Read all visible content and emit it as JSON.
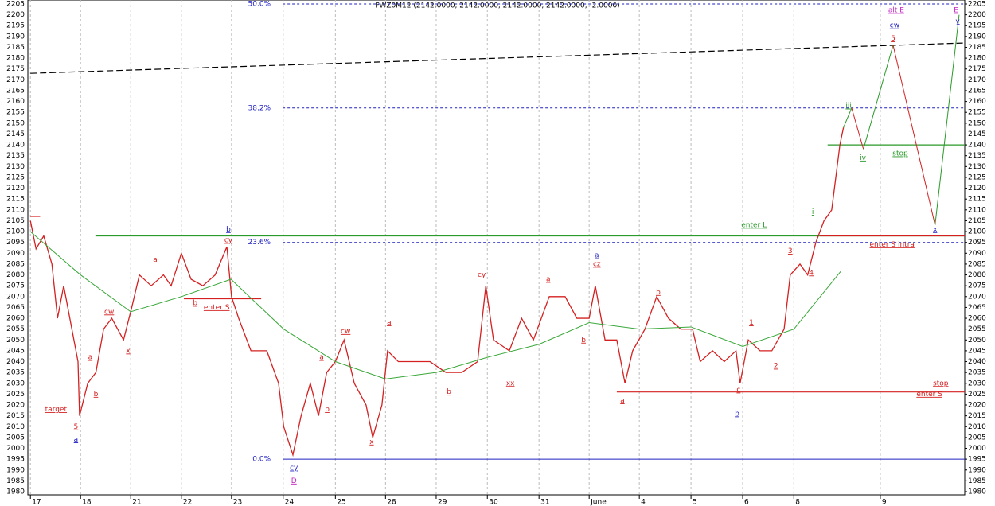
{
  "chart_data": {
    "type": "line",
    "title": "FWZ0M12 (2142.0000, 2142.0000, 2142.0000, 2142.0000, -2.0000)",
    "xlim": [
      -0.05,
      18.26
    ],
    "ylim": [
      1980,
      2205
    ],
    "xticks": [
      {
        "value": 0,
        "label": "17"
      },
      {
        "value": 0.98,
        "label": "18"
      },
      {
        "value": 1.96,
        "label": "21"
      },
      {
        "value": 2.95,
        "label": "22"
      },
      {
        "value": 3.93,
        "label": "23"
      },
      {
        "value": 4.94,
        "label": "24"
      },
      {
        "value": 5.96,
        "label": "25"
      },
      {
        "value": 6.94,
        "label": "28"
      },
      {
        "value": 7.93,
        "label": "29"
      },
      {
        "value": 8.93,
        "label": "30"
      },
      {
        "value": 9.94,
        "label": "31"
      },
      {
        "value": 10.92,
        "label": "June"
      },
      {
        "value": 11.9,
        "label": "4"
      },
      {
        "value": 12.91,
        "label": "5"
      },
      {
        "value": 13.92,
        "label": "6"
      },
      {
        "value": 14.92,
        "label": "8"
      },
      {
        "value": 16.61,
        "label": "9"
      }
    ],
    "yticks": [
      1980,
      1985,
      1990,
      1995,
      2000,
      2005,
      2010,
      2015,
      2020,
      2025,
      2030,
      2035,
      2040,
      2045,
      2050,
      2055,
      2060,
      2065,
      2070,
      2075,
      2080,
      2085,
      2090,
      2095,
      2100,
      2105,
      2110,
      2115,
      2120,
      2125,
      2130,
      2135,
      2140,
      2145,
      2150,
      2155,
      2160,
      2165,
      2170,
      2175,
      2180,
      2185,
      2190,
      2195,
      2200,
      2205
    ],
    "grid": true,
    "series": [
      {
        "color": "#d42020",
        "x": [
          0,
          0.11,
          0.26,
          0.42,
          0.53,
          0.65,
          0.81,
          0.93,
          0.96,
          1.12,
          1.28,
          1.43,
          1.59,
          1.82,
          1.98,
          2.13,
          2.36,
          2.6,
          2.75,
          2.95,
          3.14,
          3.37,
          3.61,
          3.84,
          3.93,
          4.07,
          4.31,
          4.62,
          4.85,
          4.95,
          5.13,
          5.29,
          5.47,
          5.63,
          5.79,
          5.96,
          6.13,
          6.33,
          6.56,
          6.69,
          6.87,
          6.98,
          7.19,
          7.5,
          7.81,
          8.12,
          8.43,
          8.74,
          8.9,
          9.05,
          9.36,
          9.6,
          9.83,
          10.14,
          10.45,
          10.68,
          10.92,
          11.04,
          11.23,
          11.46,
          11.62,
          11.77,
          12.01,
          12.24,
          12.47,
          12.71,
          12.94,
          13.09,
          13.33,
          13.56,
          13.79,
          13.87,
          14.03,
          14.26,
          14.49,
          14.73,
          14.85,
          15.04,
          15.19,
          15.35,
          15.51,
          15.66,
          15.82,
          15.89
        ],
        "values": [
          2105,
          2092,
          2098,
          2085,
          2060,
          2075,
          2055,
          2040,
          2015,
          2030,
          2035,
          2055,
          2060,
          2050,
          2065,
          2080,
          2075,
          2080,
          2075,
          2090,
          2078,
          2075,
          2080,
          2093,
          2070,
          2060,
          2045,
          2045,
          2030,
          2010,
          1997,
          2015,
          2030,
          2015,
          2035,
          2040,
          2050,
          2030,
          2020,
          2005,
          2020,
          2045,
          2040,
          2040,
          2040,
          2035,
          2035,
          2040,
          2075,
          2050,
          2045,
          2060,
          2050,
          2070,
          2070,
          2060,
          2060,
          2075,
          2050,
          2050,
          2030,
          2045,
          2055,
          2070,
          2060,
          2055,
          2055,
          2040,
          2045,
          2040,
          2045,
          2030,
          2050,
          2045,
          2045,
          2055,
          2080,
          2085,
          2080,
          2095,
          2105,
          2110,
          2140,
          2148
        ]
      },
      {
        "color": "#3aa83a",
        "x": [
          0,
          0.98,
          1.96,
          2.95,
          3.92,
          4.95,
          5.96,
          6.94,
          7.93,
          8.93,
          9.94,
          10.92,
          11.9,
          12.91,
          13.92,
          14.92,
          15.85
        ],
        "values": [
          2100,
          2080,
          2063,
          2070,
          2078,
          2055,
          2040,
          2032,
          2035,
          2042,
          2048,
          2058,
          2055,
          2056,
          2047,
          2055,
          2082
        ]
      },
      {
        "color": "#2a9a2a",
        "x": [
          15.89,
          16.05
        ],
        "values": [
          2148,
          2157
        ]
      },
      {
        "color": "#d42020",
        "x": [
          16.05,
          16.28
        ],
        "values": [
          2157,
          2138
        ]
      },
      {
        "color": "#2a9a2a",
        "x": [
          16.28,
          16.86
        ],
        "values": [
          2138,
          2186
        ]
      },
      {
        "color": "#d42020",
        "x": [
          16.86,
          17.68
        ],
        "values": [
          2186,
          2103
        ]
      },
      {
        "color": "#2a9a2a",
        "x": [
          17.68,
          18.15
        ],
        "values": [
          2103,
          2200
        ]
      }
    ],
    "levels": [
      {
        "label": "50.0%",
        "value": 2205,
        "dashed": true
      },
      {
        "label": "38.2%",
        "value": 2157,
        "dashed": true
      },
      {
        "label": "23.6%",
        "value": 2095,
        "dashed": true
      },
      {
        "label": "0.0%",
        "value": 1995,
        "dashed": false
      }
    ],
    "level_color": "#2020c0",
    "level_start": 4.93,
    "lines": [
      {
        "x": [
          0,
          18.26
        ],
        "values": [
          2173,
          2187
        ],
        "color": "#000",
        "dashed": true
      },
      {
        "x": [
          1.27,
          18.26
        ],
        "values": [
          2098,
          2098
        ],
        "color": "#2a9a2a",
        "dashed": false
      },
      {
        "x": [
          15.43,
          18.26
        ],
        "values": [
          2098,
          2098
        ],
        "color": "#d42020",
        "dashed": false
      },
      {
        "x": [
          3.0,
          4.51
        ],
        "values": [
          2069,
          2069
        ],
        "color": "#d42020",
        "dashed": false
      },
      {
        "x": [
          11.46,
          18.26
        ],
        "values": [
          2026,
          2026
        ],
        "color": "#d42020",
        "dashed": false
      },
      {
        "x": [
          15.58,
          18.26
        ],
        "values": [
          2140,
          2140
        ],
        "color": "#2a9a2a",
        "dashed": false
      },
      {
        "x": [
          0,
          0.19
        ],
        "values": [
          2107,
          2107
        ],
        "color": "#d42020",
        "dashed": false
      }
    ],
    "annotations": [
      {
        "text": "target",
        "x": 0.5,
        "y": 2018,
        "color": "#d42020"
      },
      {
        "text": "5",
        "x": 0.89,
        "y": 2010,
        "color": "#d42020"
      },
      {
        "text": "a",
        "x": 0.89,
        "y": 2004,
        "color": "#2020c0"
      },
      {
        "text": "a",
        "x": 1.17,
        "y": 2042,
        "color": "#d42020"
      },
      {
        "text": "b",
        "x": 1.28,
        "y": 2025,
        "color": "#d42020"
      },
      {
        "text": "cw",
        "x": 1.54,
        "y": 2063,
        "color": "#d42020"
      },
      {
        "text": "x",
        "x": 1.91,
        "y": 2045,
        "color": "#d42020"
      },
      {
        "text": "a",
        "x": 2.44,
        "y": 2087,
        "color": "#d42020"
      },
      {
        "text": "b",
        "x": 3.22,
        "y": 2067,
        "color": "#d42020"
      },
      {
        "text": "enter S",
        "x": 3.64,
        "y": 2065,
        "color": "#d42020"
      },
      {
        "text": "b",
        "x": 3.87,
        "y": 2101,
        "color": "#2020c0"
      },
      {
        "text": "cy",
        "x": 3.87,
        "y": 2096,
        "color": "#d42020"
      },
      {
        "text": "cy",
        "x": 5.15,
        "y": 1991,
        "color": "#2020c0"
      },
      {
        "text": "D",
        "x": 5.15,
        "y": 1985,
        "color": "#c020c0"
      },
      {
        "text": "a",
        "x": 5.69,
        "y": 2042,
        "color": "#d42020"
      },
      {
        "text": "b",
        "x": 5.8,
        "y": 2018,
        "color": "#d42020"
      },
      {
        "text": "cw",
        "x": 6.16,
        "y": 2054,
        "color": "#d42020"
      },
      {
        "text": "x",
        "x": 6.67,
        "y": 2003,
        "color": "#d42020"
      },
      {
        "text": "a",
        "x": 7.01,
        "y": 2058,
        "color": "#d42020"
      },
      {
        "text": "b",
        "x": 8.18,
        "y": 2026,
        "color": "#d42020"
      },
      {
        "text": "cy",
        "x": 8.82,
        "y": 2080,
        "color": "#d42020"
      },
      {
        "text": "xx",
        "x": 9.38,
        "y": 2030,
        "color": "#d42020"
      },
      {
        "text": "a",
        "x": 10.12,
        "y": 2078,
        "color": "#d42020"
      },
      {
        "text": "b",
        "x": 10.81,
        "y": 2050,
        "color": "#d42020"
      },
      {
        "text": "a",
        "x": 11.07,
        "y": 2089,
        "color": "#2020c0"
      },
      {
        "text": "cz",
        "x": 11.07,
        "y": 2085,
        "color": "#d42020"
      },
      {
        "text": "a",
        "x": 11.57,
        "y": 2022,
        "color": "#d42020"
      },
      {
        "text": "b",
        "x": 12.27,
        "y": 2072,
        "color": "#d42020"
      },
      {
        "text": "c",
        "x": 13.84,
        "y": 2027,
        "color": "#d42020"
      },
      {
        "text": "b",
        "x": 13.81,
        "y": 2016,
        "color": "#2020c0"
      },
      {
        "text": "1",
        "x": 14.09,
        "y": 2058,
        "color": "#d42020"
      },
      {
        "text": "2",
        "x": 14.57,
        "y": 2038,
        "color": "#d42020"
      },
      {
        "text": "3",
        "x": 14.85,
        "y": 2091,
        "color": "#d42020"
      },
      {
        "text": "4",
        "x": 15.26,
        "y": 2081,
        "color": "#d42020"
      },
      {
        "text": "i",
        "x": 15.29,
        "y": 2109,
        "color": "#2a9a2a"
      },
      {
        "text": "enter L",
        "x": 14.14,
        "y": 2103,
        "color": "#2a9a2a"
      },
      {
        "text": "iii",
        "x": 15.99,
        "y": 2158,
        "color": "#2a9a2a"
      },
      {
        "text": "iv",
        "x": 16.27,
        "y": 2134,
        "color": "#2a9a2a"
      },
      {
        "text": "stop",
        "x": 17.0,
        "y": 2136,
        "color": "#2a9a2a"
      },
      {
        "text": "enter S intra",
        "x": 16.84,
        "y": 2094,
        "color": "#d42020"
      },
      {
        "text": "stop",
        "x": 17.79,
        "y": 2030,
        "color": "#d42020"
      },
      {
        "text": "enter S",
        "x": 17.57,
        "y": 2025,
        "color": "#d42020"
      },
      {
        "text": "alt E",
        "x": 16.92,
        "y": 2202,
        "color": "#c020c0"
      },
      {
        "text": "E",
        "x": 18.09,
        "y": 2202,
        "color": "#c020c0"
      },
      {
        "text": "cw",
        "x": 16.89,
        "y": 2195,
        "color": "#2020c0"
      },
      {
        "text": "5",
        "x": 16.86,
        "y": 2189,
        "color": "#d42020"
      },
      {
        "text": "x",
        "x": 17.68,
        "y": 2101,
        "color": "#2020c0"
      },
      {
        "text": "y",
        "x": 18.12,
        "y": 2197,
        "color": "#2020c0"
      }
    ]
  }
}
